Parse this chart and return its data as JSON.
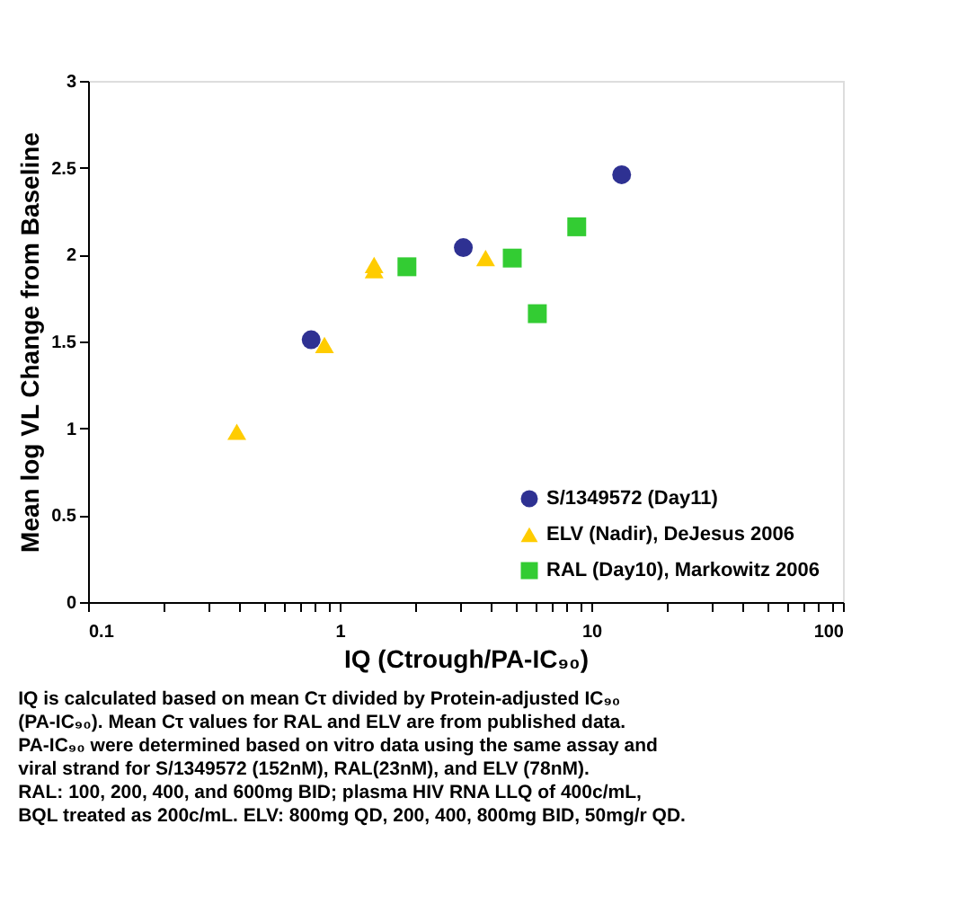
{
  "chart_data": {
    "type": "scatter",
    "xlabel": "IQ (Ctrough/PA-IC₉₀)",
    "ylabel": "Mean log VL Change from Baseline",
    "log": "x",
    "xlim": [
      0.1,
      100
    ],
    "xticks": [
      0.1,
      {
        "value": 0.2,
        "label": null
      },
      {
        "value": 0.3,
        "label": null
      },
      {
        "value": 0.4,
        "label": null
      },
      {
        "value": 0.5,
        "label": null
      },
      {
        "value": 0.6,
        "label": null
      },
      {
        "value": 0.7,
        "label": null
      },
      {
        "value": 0.8,
        "label": null
      },
      {
        "value": 0.9,
        "label": null
      },
      1,
      {
        "value": 2,
        "label": null
      },
      {
        "value": 3,
        "label": null
      },
      {
        "value": 4,
        "label": null
      },
      {
        "value": 5,
        "label": null
      },
      {
        "value": 6,
        "label": null
      },
      {
        "value": 7,
        "label": null
      },
      {
        "value": 8,
        "label": null
      },
      {
        "value": 9,
        "label": null
      },
      10,
      {
        "value": 20,
        "label": null
      },
      {
        "value": 30,
        "label": null
      },
      {
        "value": 40,
        "label": null
      },
      {
        "value": 50,
        "label": null
      },
      {
        "value": 60,
        "label": null
      },
      {
        "value": 70,
        "label": null
      },
      {
        "value": 80,
        "label": null
      },
      {
        "value": 90,
        "label": null
      },
      100
    ],
    "ylim": [
      0,
      3
    ],
    "yticks": [
      0,
      0.5,
      1,
      1.5,
      2,
      2.5,
      3
    ],
    "grid": false,
    "legend": "bottom right",
    "series": [
      {
        "name": "S/1349572  (Day11)",
        "color": "#2e3192",
        "marker": "circle",
        "x": [
          0.77,
          3.1,
          13.2
        ],
        "values": [
          1.51,
          2.04,
          2.46
        ]
      },
      {
        "name": "ELV (Nadir), DeJesus 2006",
        "color": "#ffcc00",
        "marker": "triangle",
        "x": [
          0.39,
          0.87,
          1.37,
          1.37,
          3.8
        ],
        "values": [
          0.98,
          1.48,
          1.94,
          1.91,
          1.98
        ]
      },
      {
        "name": "RAL (Day10), Markowitz 2006",
        "color": "#33cc33",
        "marker": "square",
        "x": [
          1.85,
          4.85,
          6.1,
          8.75
        ],
        "values": [
          1.93,
          1.98,
          1.66,
          2.16
        ]
      }
    ],
    "annotations": [
      "IQ is calculated based on mean Cτ divided by Protein-adjusted IC₉₀",
      "(PA-IC₉₀). Mean Cτ values for RAL and ELV are from published data.",
      "PA-IC₉₀ were determined based on vitro data using the same assay and",
      "viral strand for S/1349572 (152nM), RAL(23nM), and ELV (78nM).",
      "RAL: 100, 200, 400, and 600mg BID; plasma HIV RNA LLQ of 400c/mL,",
      "BQL treated as 200c/mL. ELV: 800mg QD, 200, 400, 800mg BID, 50mg/r QD."
    ]
  }
}
